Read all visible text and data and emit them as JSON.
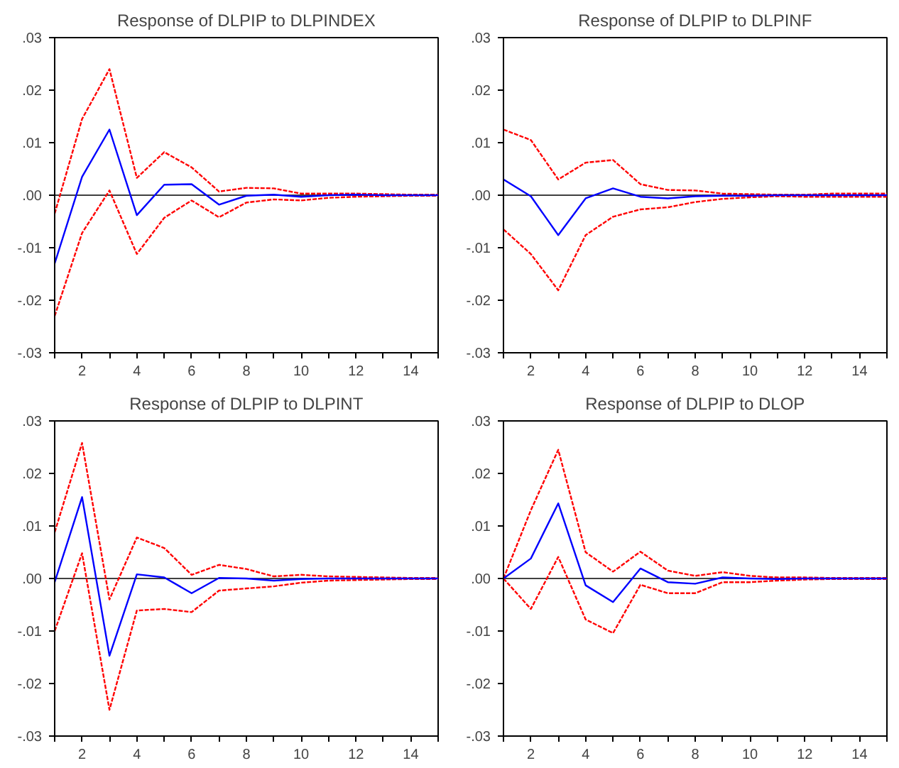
{
  "chart_data": [
    {
      "type": "line",
      "title": "Response of DLPIP to DLPINDEX",
      "x": [
        1,
        2,
        3,
        4,
        5,
        6,
        7,
        8,
        9,
        10,
        11,
        12,
        13,
        14,
        15
      ],
      "xlim": [
        1,
        15
      ],
      "ylim": [
        -0.03,
        0.03
      ],
      "xticks": [
        {
          "value": 1,
          "label": null
        },
        2,
        {
          "value": 3,
          "label": null
        },
        4,
        {
          "value": 5,
          "label": null
        },
        6,
        {
          "value": 7,
          "label": null
        },
        8,
        {
          "value": 9,
          "label": null
        },
        10,
        {
          "value": 11,
          "label": null
        },
        12,
        {
          "value": 13,
          "label": null
        },
        14,
        {
          "value": 15,
          "label": null
        }
      ],
      "yticks": [
        {
          "value": -0.03,
          "label": "-.03"
        },
        {
          "value": -0.02,
          "label": "-.02"
        },
        {
          "value": -0.01,
          "label": "-.01"
        },
        {
          "value": 0,
          "label": ".00"
        },
        {
          "value": 0.01,
          "label": ".01"
        },
        {
          "value": 0.02,
          "label": ".02"
        },
        {
          "value": 0.03,
          "label": ".03"
        }
      ],
      "grid": false,
      "ref_lines": [
        {
          "axis": "y",
          "value": 0,
          "color": "#404040"
        }
      ],
      "series": [
        {
          "color": "#0000ff",
          "line_style": "solid",
          "values": [
            -0.013,
            0.0035,
            0.0125,
            -0.0038,
            0.002,
            0.0021,
            -0.0018,
            -0.0001,
            0.0001,
            -0.0003,
            0,
            0.0001,
            0,
            0,
            0
          ]
        },
        {
          "color": "#ff0000",
          "line_style": "dashed",
          "values": [
            -0.0035,
            0.0145,
            0.024,
            0.0033,
            0.0082,
            0.0053,
            0.0007,
            0.0014,
            0.0013,
            0.0003,
            0.0003,
            0.0003,
            0.0002,
            0.0001,
            0.0001
          ]
        },
        {
          "color": "#ff0000",
          "line_style": "dashed",
          "values": [
            -0.023,
            -0.0072,
            0.0009,
            -0.0112,
            -0.0043,
            -0.001,
            -0.0042,
            -0.0014,
            -0.0008,
            -0.001,
            -0.0005,
            -0.0003,
            -0.0002,
            -0.0001,
            -0.0001
          ]
        }
      ]
    },
    {
      "type": "line",
      "title": "Response of DLPIP to DLPINF",
      "x": [
        1,
        2,
        3,
        4,
        5,
        6,
        7,
        8,
        9,
        10,
        11,
        12,
        13,
        14,
        15
      ],
      "xlim": [
        1,
        15
      ],
      "ylim": [
        -0.03,
        0.03
      ],
      "xticks": [
        {
          "value": 1,
          "label": null
        },
        2,
        {
          "value": 3,
          "label": null
        },
        4,
        {
          "value": 5,
          "label": null
        },
        6,
        {
          "value": 7,
          "label": null
        },
        8,
        {
          "value": 9,
          "label": null
        },
        10,
        {
          "value": 11,
          "label": null
        },
        12,
        {
          "value": 13,
          "label": null
        },
        14,
        {
          "value": 15,
          "label": null
        }
      ],
      "yticks": [
        {
          "value": -0.03,
          "label": "-.03"
        },
        {
          "value": -0.02,
          "label": "-.02"
        },
        {
          "value": -0.01,
          "label": "-.01"
        },
        {
          "value": 0,
          "label": ".00"
        },
        {
          "value": 0.01,
          "label": ".01"
        },
        {
          "value": 0.02,
          "label": ".02"
        },
        {
          "value": 0.03,
          "label": ".03"
        }
      ],
      "grid": false,
      "ref_lines": [
        {
          "axis": "y",
          "value": 0,
          "color": "#404040"
        }
      ],
      "series": [
        {
          "color": "#0000ff",
          "line_style": "solid",
          "values": [
            0.003,
            -0.0002,
            -0.0076,
            -0.0006,
            0.0013,
            -0.0003,
            -0.0006,
            -0.0002,
            -0.0001,
            -0.0001,
            0,
            0,
            0,
            0,
            0
          ]
        },
        {
          "color": "#ff0000",
          "line_style": "dashed",
          "values": [
            0.0125,
            0.0105,
            0.003,
            0.0062,
            0.0067,
            0.0021,
            0.001,
            0.0009,
            0.0003,
            0.0002,
            0.0001,
            0.0001,
            0.0003,
            0.0003,
            0.0003
          ]
        },
        {
          "color": "#ff0000",
          "line_style": "dashed",
          "values": [
            -0.0065,
            -0.0112,
            -0.0181,
            -0.0076,
            -0.0041,
            -0.0027,
            -0.0023,
            -0.0013,
            -0.0007,
            -0.0004,
            -0.0002,
            -0.0003,
            -0.0003,
            -0.0003,
            -0.0003
          ]
        }
      ]
    },
    {
      "type": "line",
      "title": "Response of DLPIP to DLPINT",
      "x": [
        1,
        2,
        3,
        4,
        5,
        6,
        7,
        8,
        9,
        10,
        11,
        12,
        13,
        14,
        15
      ],
      "xlim": [
        1,
        15
      ],
      "ylim": [
        -0.03,
        0.03
      ],
      "xticks": [
        {
          "value": 1,
          "label": null
        },
        2,
        {
          "value": 3,
          "label": null
        },
        4,
        {
          "value": 5,
          "label": null
        },
        6,
        {
          "value": 7,
          "label": null
        },
        8,
        {
          "value": 9,
          "label": null
        },
        10,
        {
          "value": 11,
          "label": null
        },
        12,
        {
          "value": 13,
          "label": null
        },
        14,
        {
          "value": 15,
          "label": null
        }
      ],
      "yticks": [
        {
          "value": -0.03,
          "label": "-.03"
        },
        {
          "value": -0.02,
          "label": "-.02"
        },
        {
          "value": -0.01,
          "label": "-.01"
        },
        {
          "value": 0,
          "label": ".00"
        },
        {
          "value": 0.01,
          "label": ".01"
        },
        {
          "value": 0.02,
          "label": ".02"
        },
        {
          "value": 0.03,
          "label": ".03"
        }
      ],
      "grid": false,
      "ref_lines": [
        {
          "axis": "y",
          "value": 0,
          "color": "#404040"
        }
      ],
      "series": [
        {
          "color": "#0000ff",
          "line_style": "solid",
          "values": [
            -0.0007,
            0.0155,
            -0.0147,
            0.0008,
            0.0002,
            -0.0028,
            0.0001,
            0,
            -0.0004,
            -0.0001,
            0,
            0,
            0,
            0,
            0
          ]
        },
        {
          "color": "#ff0000",
          "line_style": "dashed",
          "values": [
            0.0088,
            0.0258,
            -0.004,
            0.0078,
            0.0058,
            0.0007,
            0.0026,
            0.0018,
            0.0004,
            0.0007,
            0.0004,
            0.0003,
            0.0002,
            0.0001,
            0.0001
          ]
        },
        {
          "color": "#ff0000",
          "line_style": "dashed",
          "values": [
            -0.01,
            0.0048,
            -0.025,
            -0.0061,
            -0.0058,
            -0.0064,
            -0.0023,
            -0.0019,
            -0.0015,
            -0.0008,
            -0.0004,
            -0.0003,
            -0.0002,
            -0.0001,
            -0.0001
          ]
        }
      ]
    },
    {
      "type": "line",
      "title": "Response of DLPIP to DLOP",
      "x": [
        1,
        2,
        3,
        4,
        5,
        6,
        7,
        8,
        9,
        10,
        11,
        12,
        13,
        14,
        15
      ],
      "xlim": [
        1,
        15
      ],
      "ylim": [
        -0.03,
        0.03
      ],
      "xticks": [
        {
          "value": 1,
          "label": null
        },
        2,
        {
          "value": 3,
          "label": null
        },
        4,
        {
          "value": 5,
          "label": null
        },
        6,
        {
          "value": 7,
          "label": null
        },
        8,
        {
          "value": 9,
          "label": null
        },
        10,
        {
          "value": 11,
          "label": null
        },
        12,
        {
          "value": 13,
          "label": null
        },
        14,
        {
          "value": 15,
          "label": null
        }
      ],
      "yticks": [
        {
          "value": -0.03,
          "label": "-.03"
        },
        {
          "value": -0.02,
          "label": "-.02"
        },
        {
          "value": -0.01,
          "label": "-.01"
        },
        {
          "value": 0,
          "label": ".00"
        },
        {
          "value": 0.01,
          "label": ".01"
        },
        {
          "value": 0.02,
          "label": ".02"
        },
        {
          "value": 0.03,
          "label": ".03"
        }
      ],
      "grid": false,
      "ref_lines": [
        {
          "axis": "y",
          "value": 0,
          "color": "#404040"
        }
      ],
      "series": [
        {
          "color": "#0000ff",
          "line_style": "solid",
          "values": [
            0,
            0.0038,
            0.0143,
            -0.0013,
            -0.0045,
            0.0019,
            -0.0007,
            -0.001,
            0.0002,
            0,
            -0.0001,
            0,
            0,
            0,
            0
          ]
        },
        {
          "color": "#ff0000",
          "line_style": "dashed",
          "values": [
            0,
            0.013,
            0.0245,
            0.005,
            0.0013,
            0.0051,
            0.0015,
            0.0005,
            0.0012,
            0.0005,
            0.0002,
            0.0002,
            0.0001,
            0.0001,
            0.0001
          ]
        },
        {
          "color": "#ff0000",
          "line_style": "dashed",
          "values": [
            0,
            -0.0058,
            0.0041,
            -0.0078,
            -0.0104,
            -0.0012,
            -0.0028,
            -0.0028,
            -0.0007,
            -0.0007,
            -0.0004,
            -0.0002,
            -0.0001,
            -0.0001,
            -0.0001
          ]
        }
      ]
    }
  ]
}
